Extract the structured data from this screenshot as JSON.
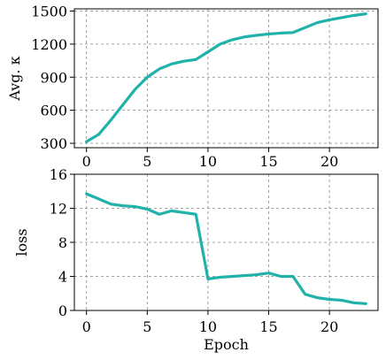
{
  "chart_data": [
    {
      "type": "line",
      "xlabel": "",
      "ylabel": "Avg. κ",
      "xlim": [
        -1,
        24
      ],
      "ylim": [
        260,
        1520
      ],
      "xticks": [
        0,
        5,
        10,
        15,
        20
      ],
      "yticks": [
        300,
        600,
        900,
        1200,
        1500
      ],
      "grid": true,
      "color": "#20b2aa",
      "series": [
        {
          "name": "",
          "x": [
            0,
            1,
            2,
            3,
            4,
            5,
            6,
            7,
            8,
            9,
            10,
            11,
            12,
            13,
            14,
            15,
            16,
            17,
            18,
            19,
            20,
            21,
            22,
            23
          ],
          "y": [
            315,
            380,
            510,
            650,
            790,
            900,
            975,
            1020,
            1045,
            1060,
            1130,
            1200,
            1240,
            1265,
            1280,
            1292,
            1300,
            1305,
            1350,
            1395,
            1420,
            1440,
            1460,
            1475
          ]
        }
      ]
    },
    {
      "type": "line",
      "xlabel": "Epoch",
      "ylabel": "loss",
      "xlim": [
        -1,
        24
      ],
      "ylim": [
        0,
        16
      ],
      "xticks": [
        0,
        5,
        10,
        15,
        20
      ],
      "yticks": [
        0,
        4,
        8,
        12,
        16
      ],
      "grid": true,
      "color": "#20b2aa",
      "series": [
        {
          "name": "",
          "x": [
            0,
            1,
            2,
            3,
            4,
            5,
            6,
            7,
            8,
            9,
            10,
            11,
            12,
            13,
            14,
            15,
            16,
            17,
            18,
            19,
            20,
            21,
            22,
            23
          ],
          "y": [
            13.7,
            13.1,
            12.5,
            12.3,
            12.2,
            11.9,
            11.3,
            11.7,
            11.5,
            11.3,
            3.7,
            3.9,
            4.0,
            4.1,
            4.2,
            4.4,
            4.0,
            4.0,
            1.9,
            1.5,
            1.3,
            1.2,
            0.9,
            0.8
          ]
        }
      ]
    }
  ]
}
